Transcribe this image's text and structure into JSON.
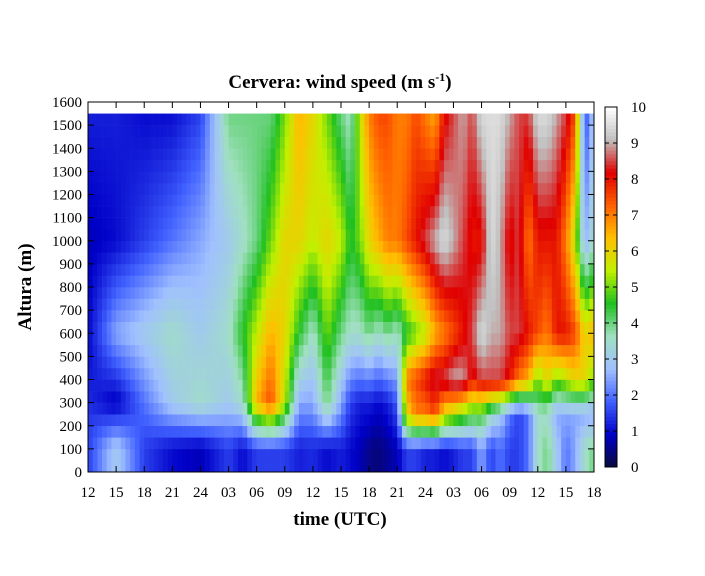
{
  "chart_data": {
    "type": "heatmap",
    "title": "Cervera: wind speed (m s",
    "title_sup": "-1",
    "title_end": ")",
    "xlabel": "time (UTC)",
    "ylabel": "Altura (m)",
    "x_ticks": [
      "12",
      "15",
      "18",
      "21",
      "24",
      "03",
      "06",
      "09",
      "12",
      "15",
      "18",
      "21",
      "24",
      "03",
      "06",
      "09",
      "12",
      "15",
      "18"
    ],
    "y_ticks": [
      0,
      100,
      200,
      300,
      400,
      500,
      600,
      700,
      800,
      900,
      1000,
      1100,
      1200,
      1300,
      1400,
      1500,
      1600
    ],
    "ylim": [
      0,
      1600
    ],
    "data_top": 1560,
    "colorbar": {
      "min": 0,
      "max": 10,
      "ticks": [
        0,
        1,
        2,
        3,
        4,
        5,
        6,
        7,
        8,
        9,
        10
      ],
      "colors": [
        "#0a0a3c",
        "#0000c8",
        "#4060ff",
        "#a0c0ff",
        "#a0e0c0",
        "#20c020",
        "#c0f000",
        "#ffc000",
        "#ff6000",
        "#e00000",
        "#c0c0c0",
        "#ffffff"
      ]
    },
    "heights_m": [
      25,
      75,
      125,
      175,
      225,
      275,
      325,
      375,
      425,
      475,
      525,
      575,
      625,
      675,
      725,
      775,
      825,
      875,
      925,
      975,
      1025,
      1075,
      1125,
      1175,
      1225,
      1275,
      1325,
      1375,
      1425,
      1475,
      1525
    ],
    "time_keys": [
      0,
      3,
      6,
      9,
      12,
      15,
      16.5,
      18,
      19.5,
      21,
      22.5,
      24,
      25.5,
      27,
      28,
      29,
      30,
      31,
      32,
      33,
      34,
      35,
      36,
      37,
      38,
      39,
      40,
      41,
      42,
      43,
      44,
      45,
      46,
      47,
      48,
      49,
      50,
      51,
      52,
      53,
      54
    ],
    "wind_speed_profiles": [
      {
        "t": 0,
        "h": [
          200,
          500,
          1000,
          1560
        ],
        "v": [
          1.5,
          1.0,
          0.8,
          1.2
        ]
      },
      {
        "t": 3,
        "h": [
          100,
          300,
          600,
          1000,
          1560
        ],
        "v": [
          3.0,
          0.8,
          2.5,
          1.0,
          1.2
        ]
      },
      {
        "t": 6,
        "h": [
          100,
          300,
          600,
          1000,
          1560
        ],
        "v": [
          1.5,
          2.0,
          3.0,
          1.5,
          1.0
        ]
      },
      {
        "t": 9,
        "h": [
          100,
          300,
          600,
          1000,
          1560
        ],
        "v": [
          1.0,
          3.0,
          3.5,
          2.0,
          1.0
        ]
      },
      {
        "t": 12,
        "h": [
          100,
          300,
          600,
          1000,
          1560
        ],
        "v": [
          0.8,
          3.5,
          3.0,
          2.5,
          1.5
        ]
      },
      {
        "t": 15,
        "h": [
          100,
          300,
          600,
          1000,
          1560
        ],
        "v": [
          1.5,
          3.0,
          3.5,
          3.0,
          4.0
        ]
      },
      {
        "t": 16.5,
        "h": [
          100,
          300,
          600,
          1000,
          1560
        ],
        "v": [
          1.0,
          3.5,
          4.5,
          3.5,
          4.0
        ]
      },
      {
        "t": 18,
        "h": [
          100,
          300,
          600,
          1000,
          1560
        ],
        "v": [
          1.5,
          6.5,
          5.5,
          4.0,
          4.0
        ]
      },
      {
        "t": 19.5,
        "h": [
          100,
          300,
          600,
          1000,
          1560
        ],
        "v": [
          1.5,
          7.5,
          6.5,
          5.0,
          4.0
        ]
      },
      {
        "t": 21,
        "h": [
          100,
          300,
          600,
          1000,
          1560
        ],
        "v": [
          1.5,
          5.5,
          6.0,
          6.0,
          5.0
        ]
      },
      {
        "t": 22.5,
        "h": [
          100,
          300,
          600,
          1000,
          1560
        ],
        "v": [
          1.2,
          2.5,
          4.5,
          6.0,
          6.5
        ]
      },
      {
        "t": 24,
        "h": [
          100,
          300,
          600,
          1000,
          1560
        ],
        "v": [
          1.3,
          2.5,
          3.5,
          5.5,
          6.0
        ]
      },
      {
        "t": 25.5,
        "h": [
          100,
          300,
          600,
          1000,
          1560
        ],
        "v": [
          1.0,
          4.0,
          5.0,
          6.0,
          5.0
        ]
      },
      {
        "t": 27,
        "h": [
          100,
          300,
          600,
          1000,
          1560
        ],
        "v": [
          1.2,
          2.5,
          4.0,
          5.5,
          4.0
        ]
      },
      {
        "t": 28,
        "h": [
          100,
          300,
          600,
          1000,
          1560
        ],
        "v": [
          1.0,
          1.5,
          3.5,
          4.5,
          3.5
        ]
      },
      {
        "t": 29,
        "h": [
          100,
          300,
          600,
          1000,
          1560
        ],
        "v": [
          0.8,
          1.2,
          3.5,
          5.0,
          5.5
        ]
      },
      {
        "t": 30,
        "h": [
          100,
          300,
          600,
          1000,
          1560
        ],
        "v": [
          0.5,
          1.2,
          4.0,
          6.0,
          7.0
        ]
      },
      {
        "t": 31,
        "h": [
          100,
          300,
          600,
          1000,
          1560
        ],
        "v": [
          0.4,
          1.0,
          3.5,
          6.5,
          7.5
        ]
      },
      {
        "t": 32,
        "h": [
          100,
          300,
          600,
          1000,
          1560
        ],
        "v": [
          0.6,
          1.2,
          4.0,
          7.0,
          7.5
        ]
      },
      {
        "t": 33,
        "h": [
          100,
          300,
          600,
          1000,
          1560
        ],
        "v": [
          0.8,
          1.8,
          3.5,
          7.0,
          7.0
        ]
      },
      {
        "t": 34,
        "h": [
          100,
          250,
          400,
          600,
          1000,
          1560
        ],
        "v": [
          1.5,
          6.0,
          7.0,
          4.5,
          7.5,
          7.0
        ]
      },
      {
        "t": 35,
        "h": [
          100,
          250,
          400,
          600,
          1000,
          1560
        ],
        "v": [
          1.5,
          7.0,
          7.5,
          5.0,
          8.0,
          7.5
        ]
      },
      {
        "t": 36,
        "h": [
          100,
          250,
          400,
          600,
          1000,
          1560
        ],
        "v": [
          1.2,
          7.0,
          8.0,
          5.5,
          8.5,
          7.0
        ]
      },
      {
        "t": 37,
        "h": [
          100,
          250,
          400,
          600,
          1000,
          1560
        ],
        "v": [
          1.2,
          7.5,
          8.5,
          6.5,
          9.0,
          6.5
        ]
      },
      {
        "t": 38,
        "h": [
          100,
          250,
          400,
          600,
          1000,
          1560
        ],
        "v": [
          1.0,
          6.0,
          8.5,
          7.0,
          9.5,
          8.0
        ]
      },
      {
        "t": 39,
        "h": [
          100,
          250,
          400,
          600,
          1000,
          1560
        ],
        "v": [
          1.2,
          5.5,
          9.0,
          7.5,
          9.0,
          8.5
        ]
      },
      {
        "t": 40,
        "h": [
          100,
          250,
          400,
          600,
          1000,
          1560
        ],
        "v": [
          1.5,
          5.0,
          9.0,
          8.0,
          8.5,
          9.0
        ]
      },
      {
        "t": 41,
        "h": [
          100,
          250,
          400,
          600,
          1000,
          1560
        ],
        "v": [
          1.5,
          4.5,
          8.0,
          8.5,
          8.0,
          8.5
        ]
      },
      {
        "t": 42,
        "h": [
          100,
          250,
          400,
          600,
          1000,
          1560
        ],
        "v": [
          2.5,
          4.5,
          8.5,
          9.5,
          8.0,
          9.5
        ]
      },
      {
        "t": 43,
        "h": [
          100,
          250,
          400,
          600,
          1000,
          1560
        ],
        "v": [
          1.5,
          3.5,
          8.5,
          9.0,
          9.5,
          9.5
        ]
      },
      {
        "t": 44,
        "h": [
          100,
          250,
          400,
          600,
          1000,
          1560
        ],
        "v": [
          2.0,
          3.0,
          8.5,
          9.0,
          9.0,
          9.5
        ]
      },
      {
        "t": 45,
        "h": [
          100,
          250,
          400,
          600,
          1000,
          1560
        ],
        "v": [
          1.5,
          2.0,
          8.0,
          8.5,
          8.0,
          9.0
        ]
      },
      {
        "t": 46,
        "h": [
          100,
          250,
          400,
          600,
          1000,
          1560
        ],
        "v": [
          1.5,
          1.5,
          7.0,
          8.5,
          8.5,
          8.5
        ]
      },
      {
        "t": 47,
        "h": [
          100,
          250,
          400,
          600,
          1000,
          1560
        ],
        "v": [
          2.0,
          2.0,
          6.5,
          8.0,
          7.0,
          8.5
        ]
      },
      {
        "t": 48,
        "h": [
          100,
          250,
          400,
          600,
          1000,
          1560
        ],
        "v": [
          3.5,
          3.5,
          5.0,
          7.5,
          8.0,
          9.5
        ]
      },
      {
        "t": 49,
        "h": [
          100,
          250,
          400,
          600,
          1000,
          1560
        ],
        "v": [
          4.0,
          3.5,
          6.0,
          7.0,
          8.0,
          9.5
        ]
      },
      {
        "t": 50,
        "h": [
          100,
          250,
          400,
          600,
          1000,
          1560
        ],
        "v": [
          3.0,
          2.5,
          5.0,
          8.0,
          8.0,
          9.0
        ]
      },
      {
        "t": 51,
        "h": [
          100,
          250,
          400,
          600,
          1000,
          1560
        ],
        "v": [
          2.0,
          2.5,
          5.5,
          8.0,
          7.0,
          8.5
        ]
      },
      {
        "t": 52,
        "h": [
          100,
          250,
          400,
          600,
          1000,
          1560
        ],
        "v": [
          2.5,
          2.5,
          6.0,
          7.5,
          5.5,
          7.5
        ]
      },
      {
        "t": 53,
        "h": [
          100,
          250,
          400,
          600,
          1000,
          1560
        ],
        "v": [
          3.5,
          2.5,
          6.0,
          6.0,
          2.5,
          1.5
        ]
      },
      {
        "t": 54,
        "h": [
          100,
          250,
          400,
          600,
          1000,
          1560
        ],
        "v": [
          4.0,
          2.5,
          5.0,
          6.5,
          3.5,
          3.0
        ]
      }
    ]
  }
}
